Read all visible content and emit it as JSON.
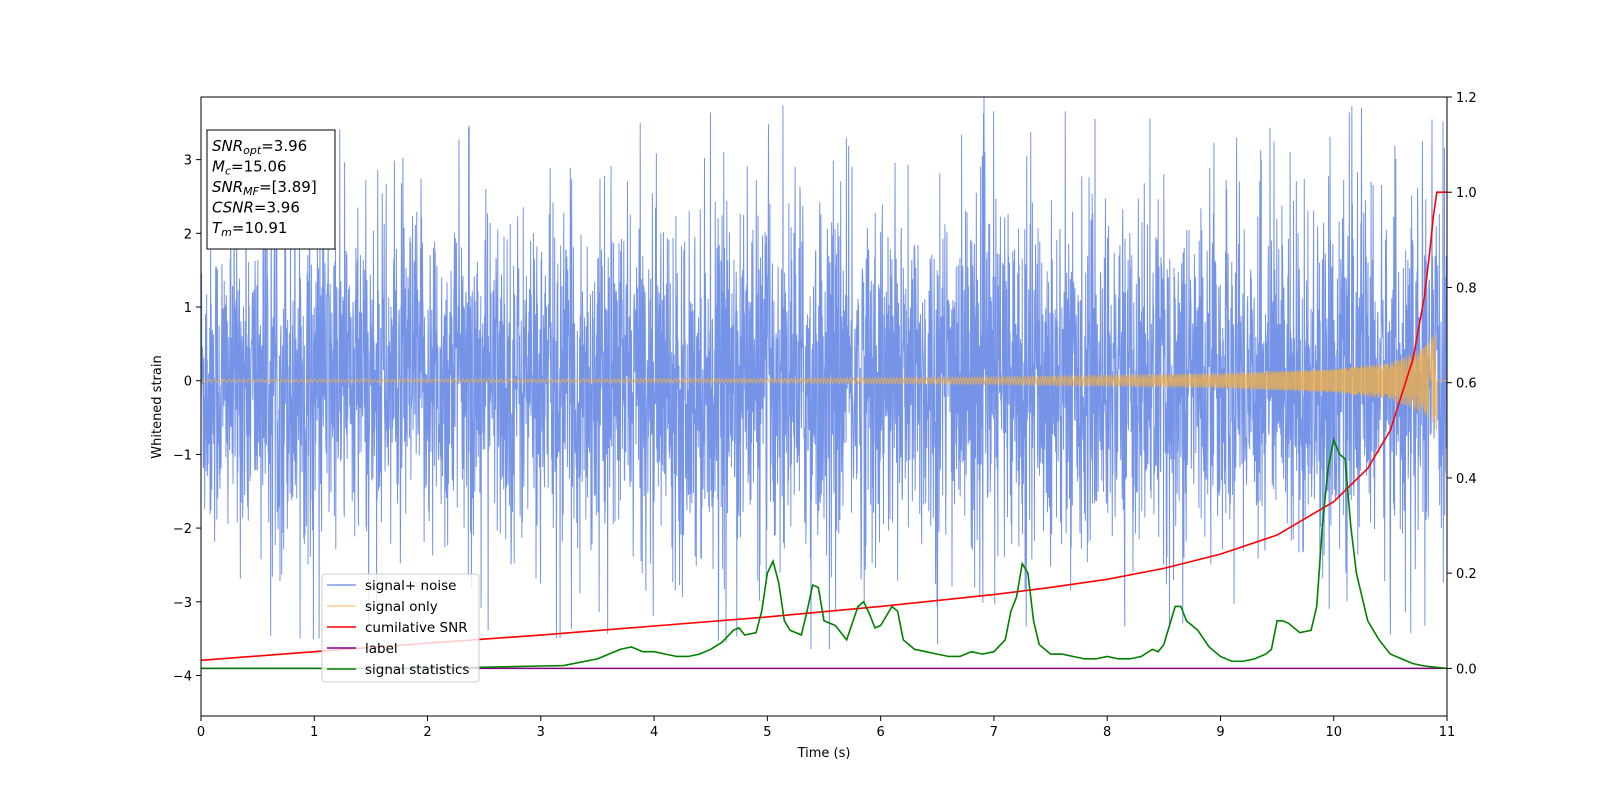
{
  "chart_data": {
    "type": "line",
    "xlabel": "Time (s)",
    "ylabel": "Whitened strain",
    "xlim": [
      0,
      11
    ],
    "ylim": [
      -4.55,
      3.85
    ],
    "ylim_right": [
      -0.1,
      1.2
    ],
    "x_ticks": [
      0,
      1,
      2,
      3,
      4,
      5,
      6,
      7,
      8,
      9,
      10,
      11
    ],
    "y_ticks": [
      -4,
      -3,
      -2,
      -1,
      0,
      1,
      2,
      3
    ],
    "y_ticks_right": [
      0.0,
      0.2,
      0.4,
      0.6,
      0.8,
      1.0,
      1.2
    ],
    "grid": false,
    "legend_position": "lower-left",
    "stats_box": [
      {
        "main": "SNR",
        "sub": "opt",
        "value": "=3.96"
      },
      {
        "main": "M",
        "sub": "c",
        "value": "=15.06"
      },
      {
        "main": "SNR",
        "sub": "MF",
        "value": "=[3.89]"
      },
      {
        "main": "CSNR",
        "sub": "",
        "value": "=3.96"
      },
      {
        "main": "T",
        "sub": "m",
        "value": "=10.91"
      }
    ],
    "series": [
      {
        "name": "signal+ noise",
        "axis": "left",
        "color": "#6f8ee6",
        "envelope": {
          "x": [
            0,
            1,
            2,
            3,
            4,
            5,
            6,
            7,
            8,
            9,
            10,
            11
          ],
          "upper": [
            2.5,
            2.6,
            2.7,
            2.6,
            2.7,
            2.9,
            2.7,
            3.0,
            2.7,
            2.8,
            2.9,
            2.7
          ],
          "lower": [
            -2.6,
            -2.7,
            -2.5,
            -2.7,
            -2.6,
            -2.8,
            -2.8,
            -2.7,
            -2.6,
            -2.5,
            -2.7,
            -2.6
          ]
        }
      },
      {
        "name": "signal only",
        "axis": "left",
        "color": "#f5b041",
        "amplitude": {
          "x": [
            0,
            5,
            7,
            9,
            10,
            10.5,
            10.8,
            10.91,
            10.92,
            11
          ],
          "y": [
            0.02,
            0.03,
            0.05,
            0.1,
            0.16,
            0.25,
            0.45,
            0.68,
            0,
            0
          ]
        }
      },
      {
        "name": "cumilative SNR",
        "axis": "right",
        "color": "#ff0000",
        "x": [
          0,
          1,
          2,
          3,
          4,
          5,
          6,
          7,
          7.5,
          8,
          8.5,
          9,
          9.5,
          10,
          10.3,
          10.5,
          10.7,
          10.8,
          10.85,
          10.88,
          10.91,
          11
        ],
        "y": [
          0.017,
          0.035,
          0.053,
          0.07,
          0.089,
          0.108,
          0.13,
          0.155,
          0.17,
          0.187,
          0.21,
          0.24,
          0.28,
          0.35,
          0.42,
          0.5,
          0.65,
          0.78,
          0.88,
          0.95,
          1.0,
          1.0
        ]
      },
      {
        "name": "label",
        "axis": "right",
        "color": "#800080",
        "x": [
          0,
          11
        ],
        "y": [
          0,
          0
        ]
      },
      {
        "name": "signal statistics",
        "axis": "right",
        "color": "#008000",
        "x": [
          0,
          1,
          2,
          3,
          3.2,
          3.5,
          3.6,
          3.7,
          3.8,
          3.9,
          4.0,
          4.1,
          4.2,
          4.3,
          4.4,
          4.5,
          4.6,
          4.7,
          4.75,
          4.8,
          4.9,
          4.95,
          5.0,
          5.05,
          5.1,
          5.15,
          5.2,
          5.3,
          5.35,
          5.4,
          5.45,
          5.5,
          5.6,
          5.7,
          5.8,
          5.85,
          5.9,
          5.95,
          6.0,
          6.05,
          6.1,
          6.15,
          6.2,
          6.3,
          6.4,
          6.5,
          6.6,
          6.7,
          6.8,
          6.9,
          7.0,
          7.1,
          7.15,
          7.2,
          7.25,
          7.3,
          7.35,
          7.4,
          7.5,
          7.6,
          7.7,
          7.8,
          7.9,
          8.0,
          8.1,
          8.2,
          8.3,
          8.4,
          8.45,
          8.5,
          8.6,
          8.65,
          8.7,
          8.8,
          8.9,
          9.0,
          9.1,
          9.2,
          9.3,
          9.4,
          9.45,
          9.5,
          9.55,
          9.6,
          9.7,
          9.8,
          9.85,
          9.9,
          9.95,
          10.0,
          10.05,
          10.1,
          10.15,
          10.2,
          10.3,
          10.4,
          10.5,
          10.6,
          10.7,
          10.8,
          11
        ],
        "y": [
          0.0,
          0.0,
          0.0,
          0.005,
          0.006,
          0.02,
          0.03,
          0.04,
          0.045,
          0.035,
          0.035,
          0.03,
          0.025,
          0.025,
          0.03,
          0.04,
          0.055,
          0.08,
          0.085,
          0.07,
          0.075,
          0.12,
          0.2,
          0.225,
          0.18,
          0.1,
          0.08,
          0.07,
          0.12,
          0.175,
          0.17,
          0.1,
          0.09,
          0.06,
          0.13,
          0.14,
          0.115,
          0.085,
          0.09,
          0.11,
          0.13,
          0.12,
          0.06,
          0.04,
          0.035,
          0.03,
          0.025,
          0.025,
          0.035,
          0.03,
          0.035,
          0.06,
          0.12,
          0.15,
          0.22,
          0.2,
          0.1,
          0.05,
          0.03,
          0.03,
          0.025,
          0.02,
          0.02,
          0.025,
          0.02,
          0.02,
          0.025,
          0.04,
          0.035,
          0.05,
          0.13,
          0.13,
          0.1,
          0.08,
          0.045,
          0.025,
          0.015,
          0.015,
          0.02,
          0.03,
          0.04,
          0.1,
          0.1,
          0.095,
          0.075,
          0.08,
          0.13,
          0.3,
          0.42,
          0.48,
          0.45,
          0.44,
          0.3,
          0.2,
          0.1,
          0.06,
          0.03,
          0.02,
          0.01,
          0.005,
          0.0
        ]
      }
    ]
  }
}
